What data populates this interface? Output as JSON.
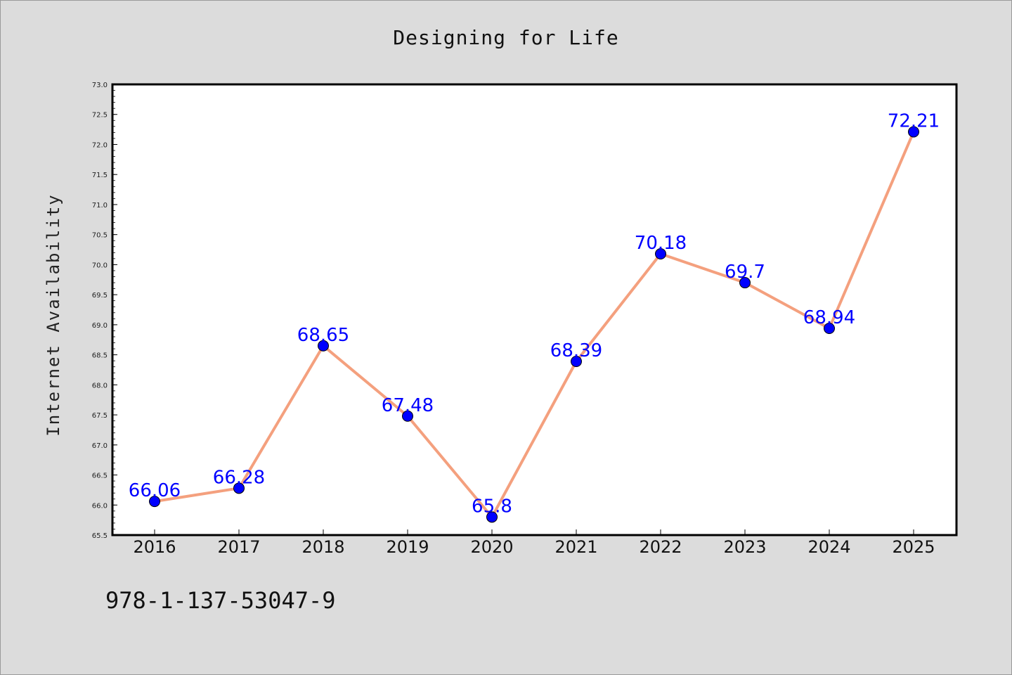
{
  "chart_data": {
    "type": "line",
    "title": "Designing for Life",
    "xlabel": "",
    "ylabel": "Internet Availability",
    "categories": [
      "2016",
      "2017",
      "2018",
      "2019",
      "2020",
      "2021",
      "2022",
      "2023",
      "2024",
      "2025"
    ],
    "values": [
      66.06,
      66.28,
      68.65,
      67.48,
      65.8,
      68.39,
      70.18,
      69.7,
      68.94,
      72.21
    ],
    "data_labels": [
      "66.06",
      "66.28",
      "68.65",
      "67.48",
      "65.8",
      "68.39",
      "70.18",
      "69.7",
      "68.94",
      "72.21"
    ],
    "ylim": [
      65.5,
      73.0
    ],
    "yticks": [
      "65.5",
      "66.0",
      "66.5",
      "67.0",
      "67.5",
      "68.0",
      "68.5",
      "69.0",
      "69.5",
      "70.0",
      "70.5",
      "71.0",
      "71.5",
      "72.0",
      "72.5",
      "73.0"
    ],
    "grid": false,
    "line_color": "#f4a07e",
    "marker_color": "#0000ff",
    "label_color": "#0000ff"
  },
  "footer": {
    "text": "978-1-137-53047-9"
  }
}
